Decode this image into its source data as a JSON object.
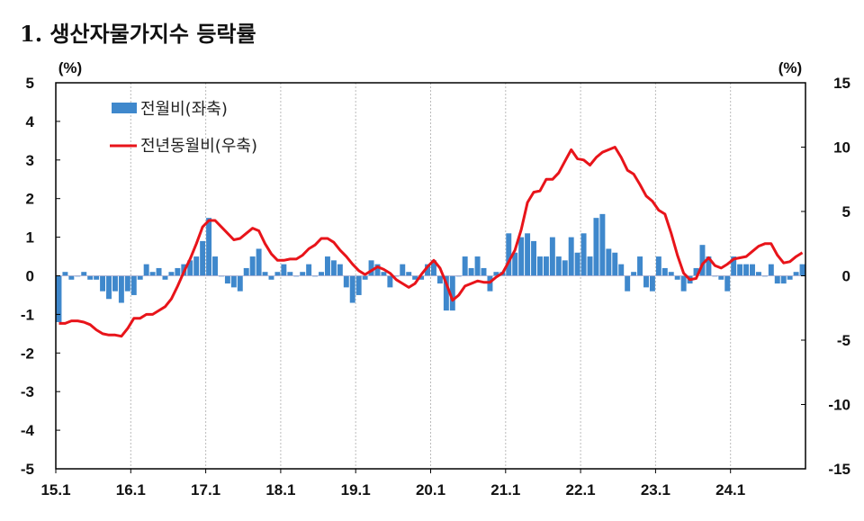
{
  "chart_data": {
    "type": "bar+line",
    "title": "1. 생산자물가지수 등락률",
    "left_unit": "(%)",
    "right_unit": "(%)",
    "left_ylim": [
      -5,
      5
    ],
    "right_ylim": [
      -15,
      15
    ],
    "left_ticks": [
      "5",
      "4",
      "3",
      "2",
      "1",
      "0",
      "-1",
      "-2",
      "-3",
      "-4",
      "-5"
    ],
    "right_ticks": [
      "15",
      "10",
      "5",
      "0",
      "-5",
      "-10",
      "-15"
    ],
    "x_start": "2015.1",
    "x_tick_labels": [
      "15.1",
      "16.1",
      "17.1",
      "18.1",
      "19.1",
      "20.1",
      "21.1",
      "22.1",
      "23.1",
      "24.1"
    ],
    "grid": "vertical dotted at each January",
    "legend": "top-left",
    "colors": {
      "bar": "#3f88cc",
      "line": "#e8141a"
    },
    "series": [
      {
        "name": "전월비(좌축)",
        "type": "bar",
        "axis": "left",
        "values": [
          -1.2,
          0.1,
          -0.1,
          0,
          0.1,
          -0.1,
          -0.1,
          -0.4,
          -0.6,
          -0.4,
          -0.7,
          -0.4,
          -0.5,
          -0.1,
          0.3,
          0.1,
          0.2,
          -0.1,
          0.1,
          0.2,
          0.3,
          0.4,
          0.5,
          0.9,
          1.5,
          0.5,
          0,
          -0.2,
          -0.3,
          -0.4,
          0.2,
          0.5,
          0.7,
          0.1,
          -0.1,
          0.1,
          0.3,
          0.1,
          0,
          0.1,
          0.3,
          0,
          0.1,
          0.5,
          0.4,
          0.3,
          -0.3,
          -0.7,
          -0.5,
          -0.1,
          0.4,
          0.3,
          0.1,
          -0.3,
          0,
          0.3,
          0.1,
          -0.1,
          -0.1,
          0.3,
          0.4,
          -0.2,
          -0.9,
          -0.9,
          0,
          0.5,
          0.2,
          0.5,
          0.2,
          -0.4,
          0.1,
          0.1,
          1.1,
          0.6,
          1.0,
          1.1,
          0.9,
          0.5,
          0.5,
          1.0,
          0.5,
          0.4,
          1.0,
          0.6,
          1.1,
          0.5,
          1.5,
          1.6,
          0.7,
          0.6,
          0.3,
          -0.4,
          0.1,
          0.5,
          -0.3,
          -0.4,
          0.5,
          0.2,
          0.1,
          -0.1,
          -0.4,
          -0.2,
          0.2,
          0.8,
          0.5,
          0,
          -0.1,
          -0.4,
          0.5,
          0.3,
          0.3,
          0.3,
          0.1,
          0,
          0.3,
          -0.2,
          -0.2,
          -0.1,
          0.1,
          0.3
        ]
      },
      {
        "name": "전년동월비(우축)",
        "type": "line",
        "axis": "right",
        "values": [
          -3.7,
          -3.7,
          -3.5,
          -3.5,
          -3.6,
          -3.8,
          -4.2,
          -4.5,
          -4.6,
          -4.6,
          -4.7,
          -4.1,
          -3.3,
          -3.3,
          -3.0,
          -3.0,
          -2.7,
          -2.4,
          -1.8,
          -0.8,
          0.3,
          1.3,
          2.5,
          3.8,
          4.3,
          4.3,
          3.8,
          3.3,
          2.8,
          2.9,
          3.3,
          3.7,
          3.5,
          2.5,
          1.7,
          1.2,
          1.2,
          1.3,
          1.3,
          1.6,
          2.1,
          2.4,
          2.9,
          2.9,
          2.6,
          2.0,
          1.5,
          0.9,
          0.4,
          0.1,
          0.4,
          0.7,
          0.5,
          0.2,
          -0.3,
          -0.6,
          -0.9,
          -0.6,
          0.1,
          0.7,
          1.2,
          0.6,
          -0.6,
          -1.9,
          -1.5,
          -0.8,
          -0.6,
          -0.4,
          -0.5,
          -0.5,
          -0.1,
          0.2,
          1.1,
          2.0,
          3.6,
          5.7,
          6.5,
          6.6,
          7.5,
          7.5,
          8.0,
          8.9,
          9.8,
          9.1,
          9.0,
          8.6,
          9.2,
          9.6,
          9.8,
          10.0,
          9.2,
          8.2,
          7.9,
          7.1,
          6.2,
          5.8,
          5.1,
          4.8,
          3.3,
          1.6,
          0.2,
          -0.3,
          -0.2,
          0.9,
          1.4,
          0.8,
          0.6,
          0.9,
          1.3,
          1.4,
          1.5,
          1.9,
          2.3,
          2.5,
          2.5,
          1.6,
          1.0,
          1.1,
          1.5,
          1.8
        ]
      }
    ]
  }
}
